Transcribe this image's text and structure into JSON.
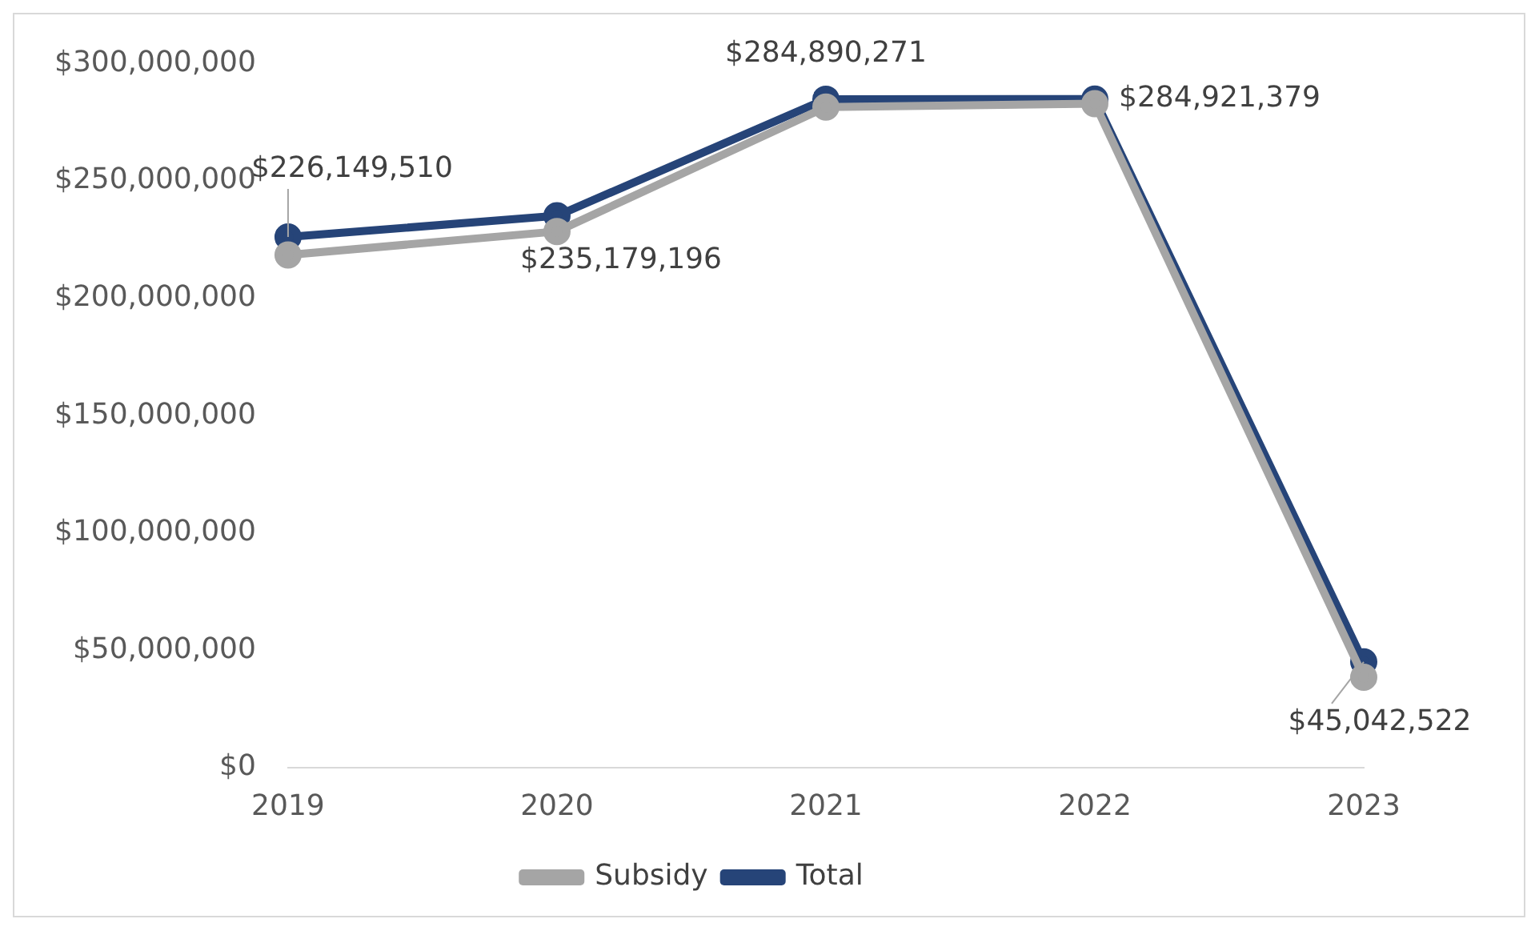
{
  "chart_data": {
    "type": "line",
    "categories": [
      "2019",
      "2020",
      "2021",
      "2022",
      "2023"
    ],
    "series": [
      {
        "name": "Subsidy",
        "color": "#a5a5a5",
        "values": [
          218500000,
          228500000,
          281500000,
          283000000,
          38500000
        ]
      },
      {
        "name": "Total",
        "color": "#264478",
        "values": [
          226149510,
          235179196,
          284890271,
          284921379,
          45042522
        ],
        "value_labels": [
          "$226,149,510",
          "$235,179,196",
          "$284,890,271",
          "$284,921,379",
          "$45,042,522"
        ]
      }
    ],
    "ylim": [
      0,
      300000000
    ],
    "yticks": [
      {
        "value": 0,
        "label": "$0"
      },
      {
        "value": 50000000,
        "label": "$50,000,000"
      },
      {
        "value": 100000000,
        "label": "$100,000,000"
      },
      {
        "value": 150000000,
        "label": "$150,000,000"
      },
      {
        "value": 200000000,
        "label": "$200,000,000"
      },
      {
        "value": 250000000,
        "label": "$250,000,000"
      },
      {
        "value": 300000000,
        "label": "$300,000,000"
      }
    ],
    "legend": "bottom",
    "marker": "circle",
    "line_style": "solid"
  }
}
